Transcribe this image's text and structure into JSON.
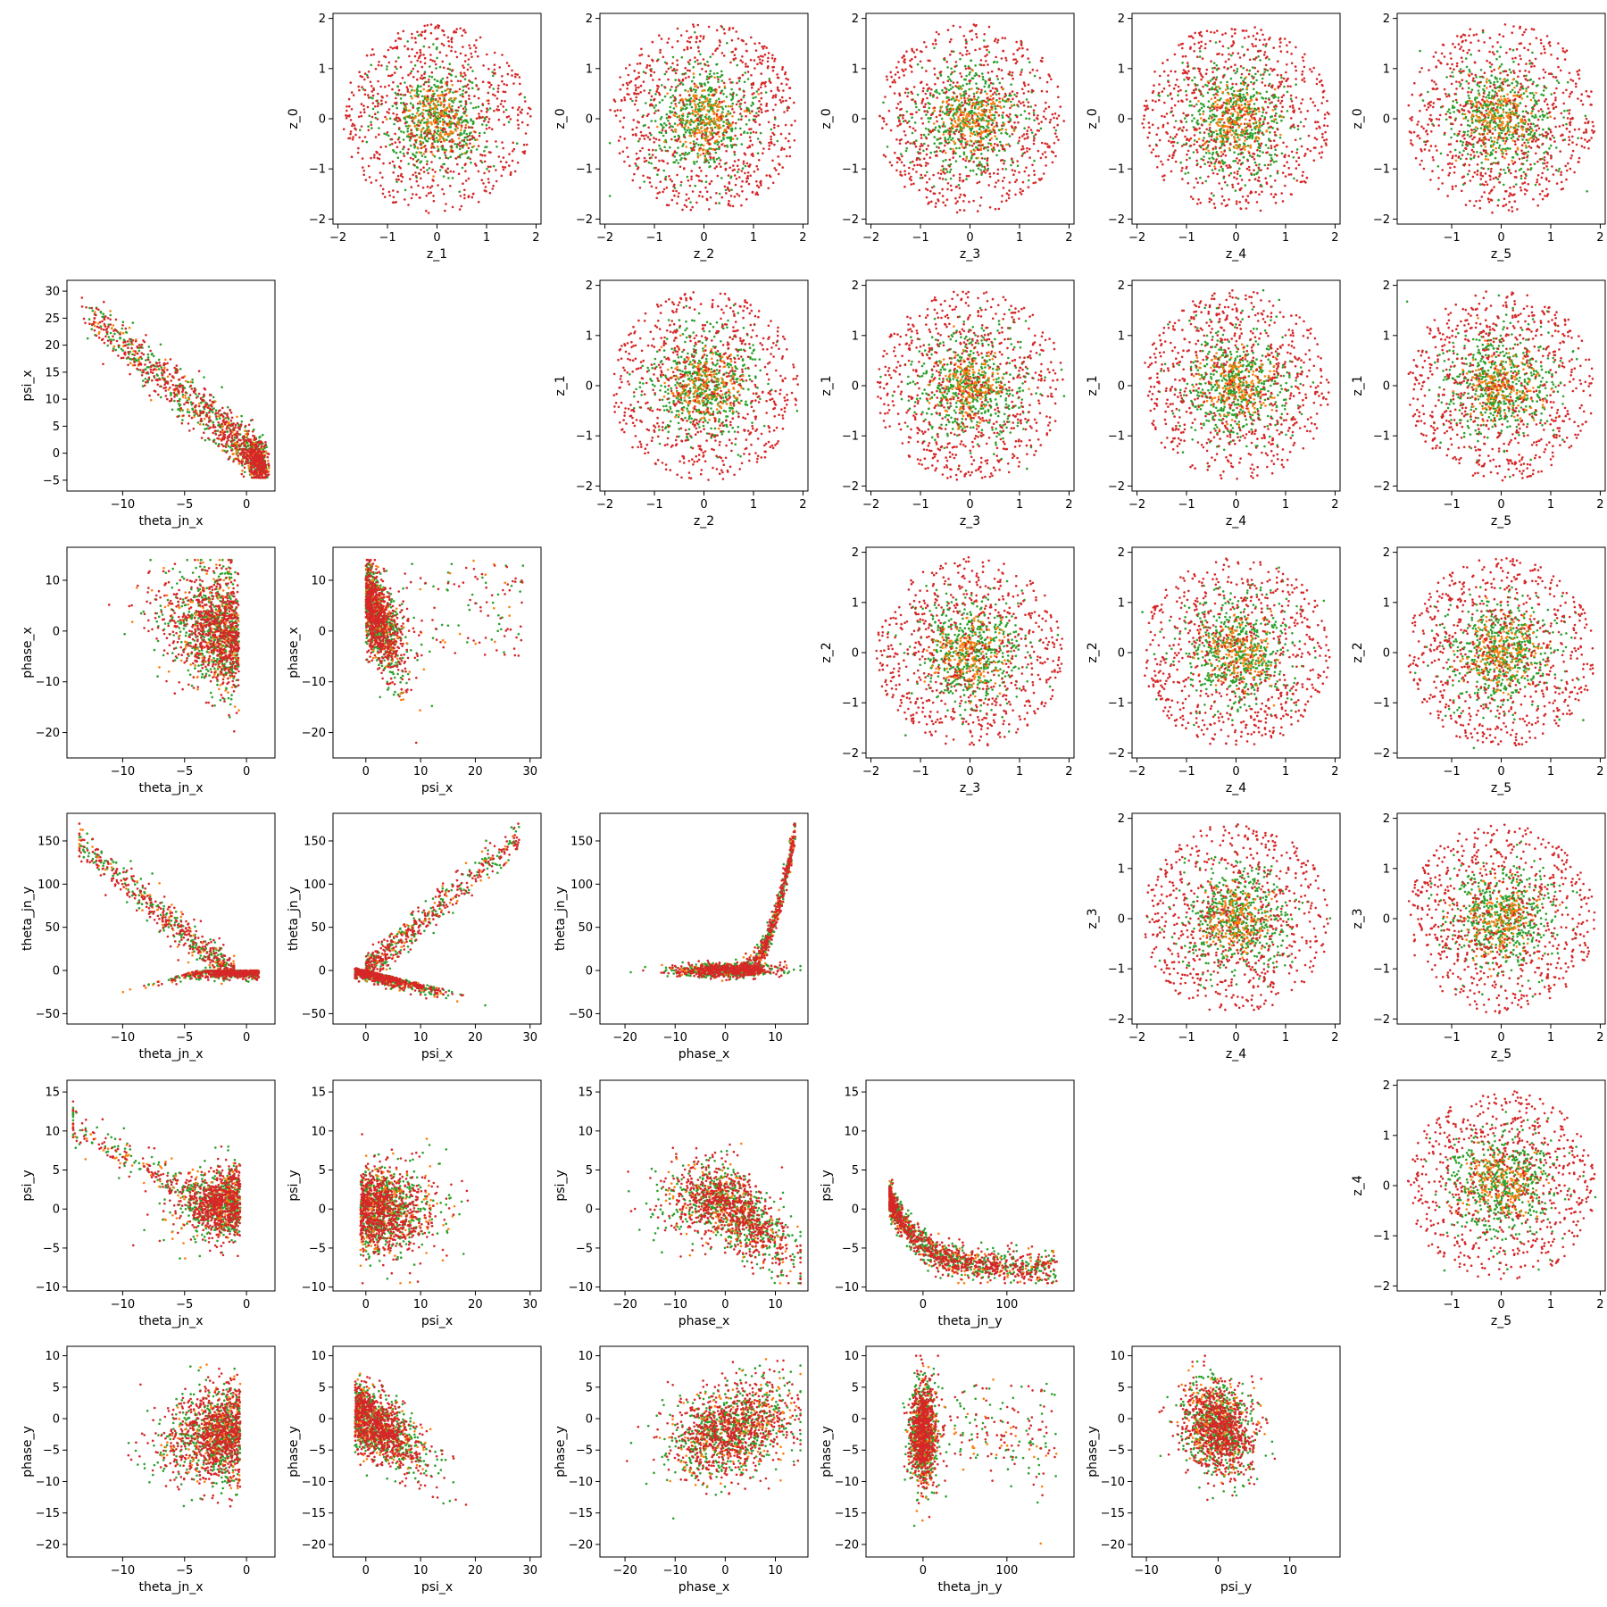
{
  "colors": {
    "red": "#d62728",
    "green": "#2ca02c",
    "orange": "#ff7f0e"
  },
  "axes_info": {
    "z_0": {
      "label": "z_0",
      "ticks": [
        -2,
        -1,
        0,
        1,
        2
      ],
      "lim": [
        -2.1,
        2.1
      ]
    },
    "z_1": {
      "label": "z_1",
      "ticks": [
        -2,
        -1,
        0,
        1,
        2
      ],
      "lim": [
        -2.1,
        2.1
      ]
    },
    "z_2": {
      "label": "z_2",
      "ticks": [
        -2,
        -1,
        0,
        1,
        2
      ],
      "lim": [
        -2.1,
        2.1
      ]
    },
    "z_3": {
      "label": "z_3",
      "ticks": [
        -2,
        -1,
        0,
        1,
        2
      ],
      "lim": [
        -2.1,
        2.1
      ]
    },
    "z_4": {
      "label": "z_4",
      "ticks": [
        -2,
        -1,
        0,
        1,
        2
      ],
      "lim": [
        -2.1,
        2.1
      ]
    },
    "z_5": {
      "label": "z_5",
      "ticks": [
        -1,
        0,
        1,
        2
      ],
      "lim": [
        -2.1,
        2.1
      ]
    },
    "theta_jn_x": {
      "label": "theta_jn_x",
      "ticks": [
        -10,
        -5,
        0
      ],
      "lim": [
        -14.5,
        2.3
      ]
    },
    "psi_x": {
      "label": "psi_x",
      "ticks": [
        0,
        10,
        20,
        30
      ],
      "lim": [
        -6,
        32
      ]
    },
    "phase_x": {
      "label": "phase_x",
      "ticks": [
        -20,
        -10,
        0,
        10
      ],
      "lim": [
        -25,
        16.5
      ]
    },
    "theta_jn_y": {
      "label": "theta_jn_y",
      "ticks": [
        0,
        100
      ],
      "lim": [
        -68,
        180
      ]
    },
    "psi_y": {
      "label": "psi_y",
      "ticks": [
        -10,
        0,
        10
      ],
      "lim": [
        -12,
        17
      ]
    },
    "phase_y": {
      "label": "phase_y",
      "ticks": [
        -20,
        -15,
        -10,
        -5,
        0,
        5,
        10
      ],
      "lim": [
        -22,
        11.5
      ]
    },
    "theta_jn_y_v": {
      "label": "theta_jn_y",
      "ticks": [
        -50,
        0,
        50,
        100,
        150
      ],
      "lim": [
        -62,
        182
      ]
    },
    "psi_y_v": {
      "label": "psi_y",
      "ticks": [
        -10,
        -5,
        0,
        5,
        10,
        15
      ],
      "lim": [
        -10.5,
        16.5
      ]
    },
    "phase_x_v": {
      "label": "phase_x",
      "ticks": [
        -20,
        -10,
        0,
        10
      ],
      "lim": [
        -25,
        16.5
      ]
    },
    "psi_x_v": {
      "label": "psi_x",
      "ticks": [
        -5,
        0,
        5,
        10,
        15,
        20,
        25,
        30
      ],
      "lim": [
        -7,
        32
      ]
    }
  },
  "chart_data": [
    {
      "type": "scatter",
      "row": 0,
      "col": 1,
      "xaxis": "z_1",
      "yaxis": "z_0",
      "kind": "gauss"
    },
    {
      "type": "scatter",
      "row": 0,
      "col": 2,
      "xaxis": "z_2",
      "yaxis": "z_0",
      "kind": "gauss"
    },
    {
      "type": "scatter",
      "row": 0,
      "col": 3,
      "xaxis": "z_3",
      "yaxis": "z_0",
      "kind": "gauss"
    },
    {
      "type": "scatter",
      "row": 0,
      "col": 4,
      "xaxis": "z_4",
      "yaxis": "z_0",
      "kind": "gauss"
    },
    {
      "type": "scatter",
      "row": 0,
      "col": 5,
      "xaxis": "z_5",
      "yaxis": "z_0",
      "kind": "gauss"
    },
    {
      "type": "scatter",
      "row": 1,
      "col": 0,
      "xaxis": "theta_jn_x",
      "yaxis": "psi_x_v",
      "kind": "corr_neg"
    },
    {
      "type": "scatter",
      "row": 1,
      "col": 2,
      "xaxis": "z_2",
      "yaxis": "z_1",
      "kind": "gauss"
    },
    {
      "type": "scatter",
      "row": 1,
      "col": 3,
      "xaxis": "z_3",
      "yaxis": "z_1",
      "kind": "gauss"
    },
    {
      "type": "scatter",
      "row": 1,
      "col": 4,
      "xaxis": "z_4",
      "yaxis": "z_1",
      "kind": "gauss"
    },
    {
      "type": "scatter",
      "row": 1,
      "col": 5,
      "xaxis": "z_5",
      "yaxis": "z_1",
      "kind": "gauss"
    },
    {
      "type": "scatter",
      "row": 2,
      "col": 0,
      "xaxis": "theta_jn_x",
      "yaxis": "phase_x_v",
      "kind": "tj_phase"
    },
    {
      "type": "scatter",
      "row": 2,
      "col": 1,
      "xaxis": "psi_x",
      "yaxis": "phase_x_v",
      "kind": "psi_phase"
    },
    {
      "type": "scatter",
      "row": 2,
      "col": 3,
      "xaxis": "z_3",
      "yaxis": "z_2",
      "kind": "gauss"
    },
    {
      "type": "scatter",
      "row": 2,
      "col": 4,
      "xaxis": "z_4",
      "yaxis": "z_2",
      "kind": "gauss"
    },
    {
      "type": "scatter",
      "row": 2,
      "col": 5,
      "xaxis": "z_5",
      "yaxis": "z_2",
      "kind": "gauss"
    },
    {
      "type": "scatter",
      "row": 3,
      "col": 0,
      "xaxis": "theta_jn_x",
      "yaxis": "theta_jn_y_v",
      "kind": "fork_tj"
    },
    {
      "type": "scatter",
      "row": 3,
      "col": 1,
      "xaxis": "psi_x",
      "yaxis": "theta_jn_y_v",
      "kind": "fork_psi"
    },
    {
      "type": "scatter",
      "row": 3,
      "col": 2,
      "xaxis": "phase_x",
      "yaxis": "theta_jn_y_v",
      "kind": "hockey"
    },
    {
      "type": "scatter",
      "row": 3,
      "col": 4,
      "xaxis": "z_4",
      "yaxis": "z_3",
      "kind": "gauss"
    },
    {
      "type": "scatter",
      "row": 3,
      "col": 5,
      "xaxis": "z_5",
      "yaxis": "z_3",
      "kind": "gauss"
    },
    {
      "type": "scatter",
      "row": 4,
      "col": 0,
      "xaxis": "theta_jn_x",
      "yaxis": "psi_y_v",
      "kind": "fork_tj_psi"
    },
    {
      "type": "scatter",
      "row": 4,
      "col": 1,
      "xaxis": "psi_x",
      "yaxis": "psi_y_v",
      "kind": "fork_psi_psi"
    },
    {
      "type": "scatter",
      "row": 4,
      "col": 2,
      "xaxis": "phase_x",
      "yaxis": "psi_y_v",
      "kind": "phase_psi"
    },
    {
      "type": "scatter",
      "row": 4,
      "col": 3,
      "xaxis": "theta_jn_y",
      "yaxis": "psi_y_v",
      "kind": "decay"
    },
    {
      "type": "scatter",
      "row": 4,
      "col": 5,
      "xaxis": "z_5",
      "yaxis": "z_4",
      "kind": "gauss"
    },
    {
      "type": "scatter",
      "row": 5,
      "col": 0,
      "xaxis": "theta_jn_x",
      "yaxis": "phase_y",
      "kind": "blob_tj"
    },
    {
      "type": "scatter",
      "row": 5,
      "col": 1,
      "xaxis": "psi_x",
      "yaxis": "phase_y",
      "kind": "psi_phy"
    },
    {
      "type": "scatter",
      "row": 5,
      "col": 2,
      "xaxis": "phase_x",
      "yaxis": "phase_y",
      "kind": "phx_phy"
    },
    {
      "type": "scatter",
      "row": 5,
      "col": 3,
      "xaxis": "theta_jn_y",
      "yaxis": "phase_y",
      "kind": "tjy_phy"
    },
    {
      "type": "scatter",
      "row": 5,
      "col": 4,
      "xaxis": "psi_y",
      "yaxis": "phase_y",
      "kind": "psiy_phy"
    }
  ]
}
